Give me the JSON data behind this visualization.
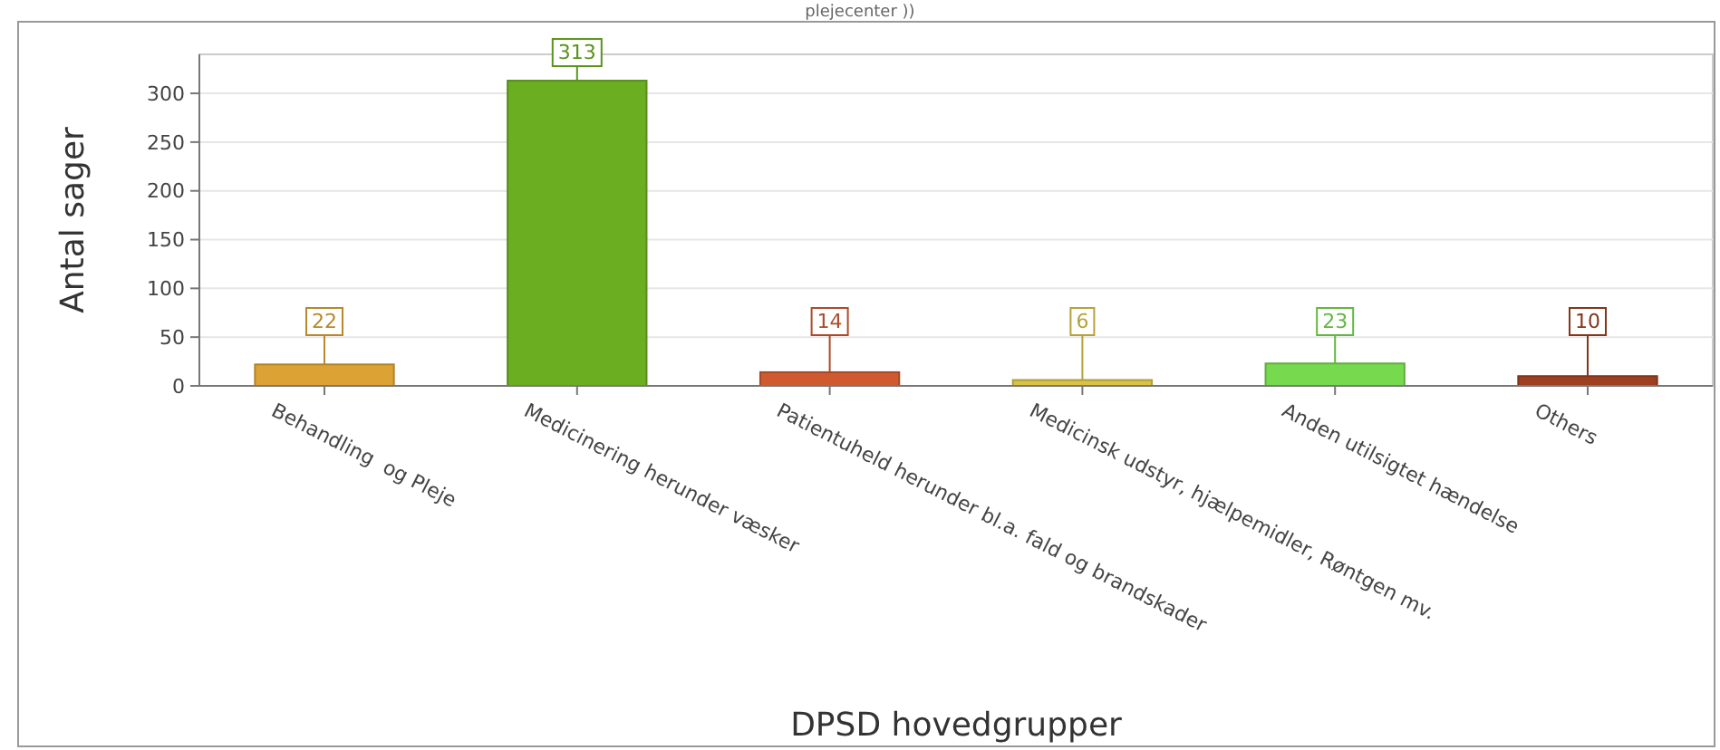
{
  "chart_data": {
    "type": "bar",
    "title": "plejecenter ))",
    "xlabel": "DPSD hovedgrupper",
    "ylabel": "Antal sager",
    "categories": [
      "Behandling  og Pleje",
      "Medicinering herunder væsker",
      "Patientuheld herunder bl.a. fald og brandskader",
      "Medicinsk udstyr, hjælpemidler, Røntgen mv.",
      "Anden utilsigtet hændelse",
      "Others"
    ],
    "values": [
      22,
      313,
      14,
      6,
      23,
      10
    ],
    "colors": [
      "#dca233",
      "#6cae22",
      "#cf5a30",
      "#d9c244",
      "#76d94e",
      "#9e3f1f"
    ],
    "ylim": [
      0,
      340
    ],
    "yticks": [
      0,
      50,
      100,
      150,
      200,
      250,
      300
    ],
    "grid": "y",
    "data_labels": true
  }
}
